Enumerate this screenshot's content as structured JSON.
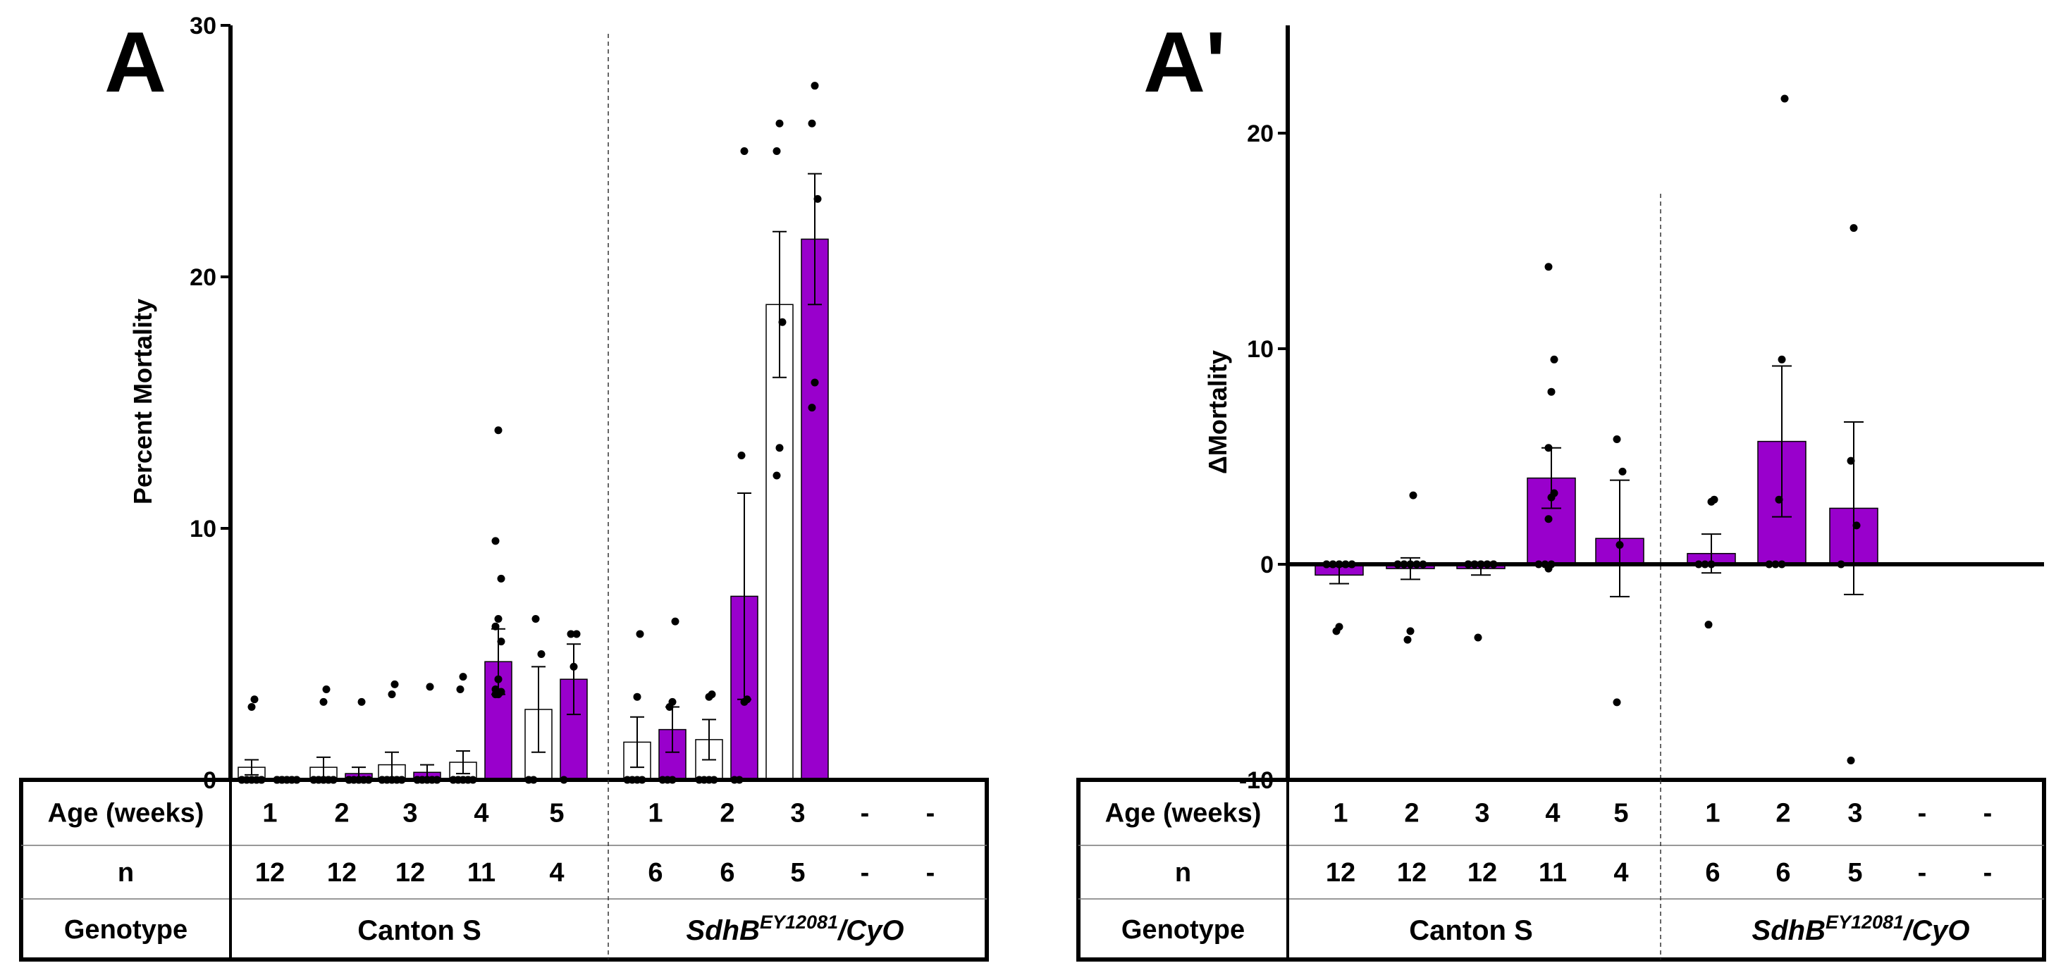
{
  "colors": {
    "purple": "#9900cc",
    "white": "#ffffff",
    "black": "#000000"
  },
  "chart_data": [
    {
      "panel": "A",
      "type": "bar",
      "ylabel": "Percent Mortality",
      "ylim": [
        0,
        30
      ],
      "yticks": [
        "0",
        "10",
        "20",
        "30"
      ],
      "ytick_values": [
        0,
        10,
        20,
        30
      ],
      "groups": [
        {
          "genotype": "Canton S",
          "italic": false,
          "bars": [
            {
              "age": "1",
              "n": "12",
              "white": {
                "mean": 0.5,
                "err": 0.3,
                "points": [
                  0,
                  0,
                  0,
                  0,
                  0,
                  0,
                  0,
                  0,
                  0,
                  0,
                  2.9,
                  3.2
                ]
              },
              "purple": {
                "mean": 0.0,
                "err": 0.0,
                "points": [
                  0,
                  0,
                  0,
                  0,
                  0,
                  0,
                  0,
                  0,
                  0,
                  0,
                  0,
                  0
                ]
              }
            },
            {
              "age": "2",
              "n": "12",
              "white": {
                "mean": 0.5,
                "err": 0.4,
                "points": [
                  0,
                  0,
                  0,
                  0,
                  0,
                  0,
                  0,
                  0,
                  0,
                  0,
                  3.1,
                  3.6
                ]
              },
              "purple": {
                "mean": 0.25,
                "err": 0.25,
                "points": [
                  0,
                  0,
                  0,
                  0,
                  0,
                  0,
                  0,
                  0,
                  0,
                  0,
                  0,
                  3.1
                ]
              }
            },
            {
              "age": "3",
              "n": "12",
              "white": {
                "mean": 0.6,
                "err": 0.5,
                "points": [
                  0,
                  0,
                  0,
                  0,
                  0,
                  0,
                  0,
                  0,
                  0,
                  0,
                  3.4,
                  3.8
                ]
              },
              "purple": {
                "mean": 0.3,
                "err": 0.3,
                "points": [
                  0,
                  0,
                  0,
                  0,
                  0,
                  0,
                  0,
                  0,
                  0,
                  0,
                  0,
                  3.7
                ]
              }
            },
            {
              "age": "4",
              "n": "11",
              "white": {
                "mean": 0.7,
                "err": 0.45,
                "points": [
                  0,
                  0,
                  0,
                  0,
                  0,
                  0,
                  0,
                  0,
                  0,
                  3.6,
                  4.1
                ]
              },
              "purple": {
                "mean": 4.7,
                "err": 1.3,
                "points": [
                  3.4,
                  3.4,
                  3.5,
                  3.6,
                  4.0,
                  5.5,
                  6.1,
                  6.4,
                  8.0,
                  9.5,
                  13.9
                ]
              }
            },
            {
              "age": "5",
              "n": "4",
              "white": {
                "mean": 2.8,
                "err": 1.7,
                "points": [
                  0,
                  0,
                  5.0,
                  6.4
                ]
              },
              "purple": {
                "mean": 4.0,
                "err": 1.4,
                "points": [
                  0,
                  4.5,
                  5.8,
                  5.8
                ]
              }
            }
          ]
        },
        {
          "genotype_main": "SdhB",
          "genotype_sup": "EY12081",
          "genotype_tail": "/CyO",
          "italic": true,
          "bars": [
            {
              "age": "1",
              "n": "6",
              "white": {
                "mean": 1.5,
                "err": 1.0,
                "points": [
                  0,
                  0,
                  0,
                  0,
                  3.3,
                  5.8
                ]
              },
              "purple": {
                "mean": 2.0,
                "err": 0.9,
                "points": [
                  0,
                  0,
                  0,
                  2.9,
                  3.1,
                  6.3
                ]
              }
            },
            {
              "age": "2",
              "n": "6",
              "white": {
                "mean": 1.6,
                "err": 0.8,
                "points": [
                  0,
                  0,
                  0,
                  0,
                  3.3,
                  3.4
                ]
              },
              "purple": {
                "mean": 7.3,
                "err": 4.1,
                "points": [
                  0,
                  3.1,
                  3.2,
                  12.9,
                  25.0,
                  0
                ]
              }
            },
            {
              "age": "3",
              "n": "5",
              "white": {
                "mean": 18.9,
                "err": 2.9,
                "points": [
                  12.1,
                  13.2,
                  18.2,
                  25.0,
                  26.1
                ]
              },
              "purple": {
                "mean": 21.5,
                "err": 2.6,
                "points": [
                  14.8,
                  15.8,
                  23.1,
                  26.1,
                  27.6
                ]
              }
            },
            {
              "age": "-",
              "n": "-",
              "white": null,
              "purple": null
            },
            {
              "age": "-",
              "n": "-",
              "white": null,
              "purple": null
            }
          ]
        }
      ]
    },
    {
      "panel": "A'",
      "type": "bar",
      "ylabel": "ΔMortality",
      "ylim": [
        -10,
        25
      ],
      "yticks": [
        "-10",
        "0",
        "10",
        "20"
      ],
      "ytick_values": [
        -10,
        0,
        10,
        20
      ],
      "groups": [
        {
          "genotype": "Canton S",
          "italic": false,
          "bars": [
            {
              "age": "1",
              "n": "12",
              "mean": -0.5,
              "err": 0.4,
              "points": [
                -3.1,
                -2.9,
                0,
                0,
                0,
                0,
                0,
                0,
                0,
                0,
                0,
                0
              ]
            },
            {
              "age": "2",
              "n": "12",
              "mean": -0.2,
              "err": 0.5,
              "points": [
                -3.5,
                -3.1,
                0,
                0,
                0,
                0,
                0,
                0,
                0,
                0,
                0,
                3.2
              ]
            },
            {
              "age": "3",
              "n": "12",
              "mean": -0.2,
              "err": 0.3,
              "points": [
                -3.4,
                0,
                0,
                0,
                0,
                0,
                0,
                0,
                0,
                0,
                0,
                0
              ]
            },
            {
              "age": "4",
              "n": "11",
              "mean": 4.0,
              "err": 1.4,
              "points": [
                -0.2,
                0,
                0,
                2.1,
                3.1,
                3.3,
                5.4,
                8.0,
                9.5,
                13.8,
                0
              ]
            },
            {
              "age": "5",
              "n": "4",
              "mean": 1.2,
              "err": 2.7,
              "points": [
                -6.4,
                0.9,
                4.3,
                5.8
              ]
            }
          ]
        },
        {
          "genotype_main": "SdhB",
          "genotype_sup": "EY12081",
          "genotype_tail": "/CyO",
          "italic": true,
          "bars": [
            {
              "age": "1",
              "n": "6",
              "mean": 0.5,
              "err": 0.9,
              "points": [
                -2.8,
                0,
                0,
                0,
                2.9,
                3.0
              ]
            },
            {
              "age": "2",
              "n": "6",
              "mean": 5.7,
              "err": 3.5,
              "points": [
                0,
                0,
                0,
                3.0,
                9.5,
                21.6
              ]
            },
            {
              "age": "3",
              "n": "5",
              "mean": 2.6,
              "err": 4.0,
              "points": [
                -9.1,
                0,
                1.8,
                4.8,
                15.6
              ]
            },
            {
              "age": "-",
              "n": "-",
              "mean": null
            },
            {
              "age": "-",
              "n": "-",
              "mean": null
            }
          ]
        }
      ]
    }
  ],
  "table": {
    "row1": "Age (weeks)",
    "row2": "n",
    "row3": "Genotype"
  }
}
